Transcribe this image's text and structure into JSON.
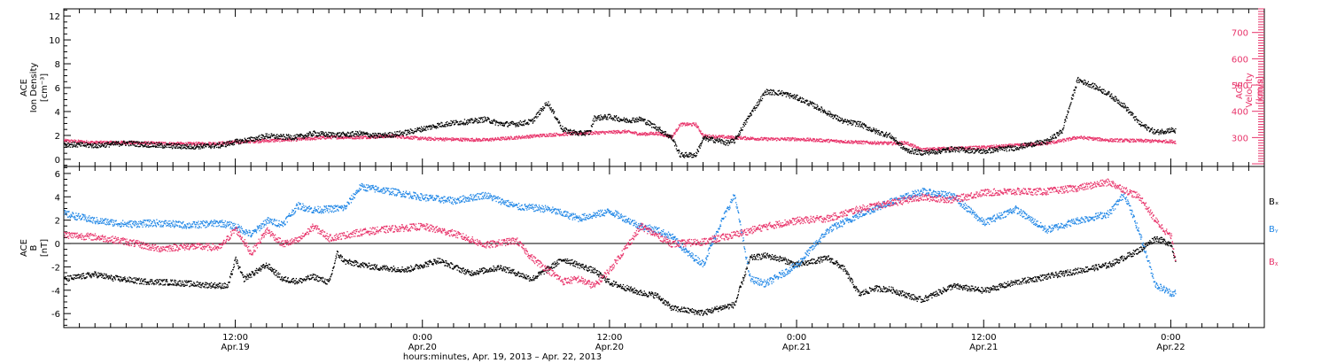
{
  "xlabel": "hours:minutes, Apr. 19, 2013 – Apr. 22, 2013",
  "x_ticks": [
    {
      "hours": 0,
      "time": "12:00",
      "date": "Apr.19"
    },
    {
      "hours": 12,
      "time": "0:00",
      "date": "Apr.20"
    },
    {
      "hours": 24,
      "time": "12:00",
      "date": "Apr.20"
    },
    {
      "hours": 36,
      "time": "0:00",
      "date": "Apr.21"
    },
    {
      "hours": 48,
      "time": "12:00",
      "date": "Apr.21"
    },
    {
      "hours": 60,
      "time": "0:00",
      "date": "Apr.22"
    }
  ],
  "x_range_hours": [
    -11,
    66
  ],
  "colors": {
    "black": "#000000",
    "pink": "#e8336a",
    "blue": "#1f86e6"
  },
  "chart_data": [
    {
      "type": "scatter",
      "panel": "top",
      "ylabel_left": [
        "ACE",
        "Ion Density",
        "[cm⁻³]"
      ],
      "ylabel_right": [
        "ACE",
        "Velocity",
        "[km/s]"
      ],
      "ylim_left": [
        -0.6,
        12.6
      ],
      "yticks_left": [
        0,
        2,
        4,
        6,
        8,
        10,
        12
      ],
      "ylim_right": [
        190,
        790
      ],
      "yticks_right": [
        300,
        400,
        500,
        600,
        700
      ],
      "series": [
        {
          "axis": "left",
          "color": "#000000",
          "x": [
            -11,
            -9,
            -7,
            -5,
            -3,
            -1,
            0,
            1,
            2,
            3,
            4,
            5,
            6,
            7,
            8,
            9,
            10,
            11,
            12,
            13,
            14,
            15,
            16,
            17,
            18,
            19,
            20,
            21,
            22,
            22.7,
            23,
            24,
            25,
            26,
            27,
            28,
            28.5,
            29.5,
            30,
            31,
            31.5,
            32,
            33,
            34,
            35,
            36,
            37,
            38,
            39,
            40,
            41,
            42,
            43,
            44,
            45,
            46,
            47,
            48,
            49,
            50,
            51,
            52,
            53,
            54,
            55,
            56,
            57,
            58,
            59,
            60,
            60.3
          ],
          "y": [
            1.3,
            1.2,
            1.4,
            1.2,
            1.1,
            1.2,
            1.5,
            1.7,
            2.0,
            1.9,
            1.9,
            2.2,
            2.1,
            2.1,
            2.2,
            2.0,
            2.1,
            2.3,
            2.6,
            2.9,
            3.1,
            3.2,
            3.4,
            3.0,
            3.0,
            3.2,
            4.8,
            2.5,
            2.2,
            2.3,
            3.5,
            3.6,
            3.3,
            3.4,
            2.7,
            1.8,
            0.4,
            0.4,
            1.8,
            1.6,
            1.4,
            1.6,
            3.8,
            5.7,
            5.6,
            5.2,
            4.6,
            3.9,
            3.2,
            3.0,
            2.4,
            2.0,
            0.8,
            0.6,
            0.7,
            0.9,
            0.8,
            0.7,
            0.9,
            1.0,
            1.3,
            1.5,
            2.4,
            6.7,
            6.2,
            5.5,
            4.5,
            3.0,
            2.3,
            2.5,
            2.4
          ]
        },
        {
          "axis": "right",
          "color": "#e8336a",
          "x": [
            -11,
            -9,
            -7,
            -5,
            -3,
            -1,
            0,
            2,
            4,
            6,
            8,
            10,
            12,
            14,
            16,
            18,
            20,
            22,
            23,
            24,
            25,
            26,
            27,
            28,
            28.5,
            29.5,
            30,
            32,
            34,
            36,
            38,
            40,
            42,
            43,
            44,
            45,
            46,
            48,
            50,
            52,
            53,
            54,
            56,
            58,
            60,
            60.3
          ],
          "y": [
            290,
            283,
            283,
            280,
            278,
            280,
            285,
            290,
            295,
            303,
            303,
            308,
            298,
            295,
            293,
            302,
            312,
            318,
            320,
            322,
            325,
            315,
            318,
            305,
            352,
            352,
            308,
            302,
            296,
            296,
            290,
            284,
            280,
            282,
            255,
            260,
            260,
            265,
            272,
            280,
            290,
            303,
            292,
            290,
            287,
            285
          ]
        }
      ]
    },
    {
      "type": "scatter",
      "panel": "bottom",
      "ylabel_left": [
        "ACE",
        "B",
        "[nT]"
      ],
      "ylim_left": [
        -7.2,
        6.6
      ],
      "yticks_left": [
        -6,
        -4,
        -2,
        0,
        2,
        4,
        6
      ],
      "zero_line": true,
      "legend": [
        "Bₓ",
        "Bᵧ",
        "Bᵪ"
      ],
      "series": [
        {
          "name": "Bx",
          "color": "#000000",
          "x": [
            -11,
            -9,
            -8,
            -6,
            -4,
            -2,
            -0.5,
            0,
            0.5,
            2,
            3,
            4,
            5,
            6,
            6.5,
            7,
            9,
            11,
            13,
            15,
            17,
            19,
            21,
            23,
            24,
            26,
            27,
            28,
            30,
            31,
            32,
            33,
            34,
            35,
            36,
            37,
            38,
            39,
            40,
            41,
            42,
            44,
            46,
            48,
            50,
            52,
            54,
            56,
            58,
            59,
            60,
            60.3
          ],
          "y": [
            -3.0,
            -2.6,
            -2.9,
            -3.2,
            -3.3,
            -3.5,
            -3.6,
            -1.3,
            -3.0,
            -1.8,
            -3.0,
            -3.2,
            -2.8,
            -3.3,
            -0.8,
            -1.5,
            -2.0,
            -2.2,
            -1.4,
            -2.5,
            -2.0,
            -3.0,
            -1.3,
            -2.3,
            -3.3,
            -4.2,
            -4.4,
            -5.5,
            -5.9,
            -5.5,
            -5.2,
            -1.2,
            -1.0,
            -1.3,
            -1.8,
            -1.5,
            -1.2,
            -2.1,
            -4.3,
            -3.8,
            -3.9,
            -4.8,
            -3.6,
            -4.0,
            -3.3,
            -2.8,
            -2.3,
            -1.8,
            -0.5,
            0.5,
            0.0,
            -1.6
          ]
        },
        {
          "name": "By",
          "color": "#1f86e6",
          "x": [
            -11,
            -9,
            -7,
            -5,
            -3,
            -1,
            0,
            1,
            2,
            3,
            4,
            5,
            6,
            7,
            8,
            9,
            10,
            12,
            14,
            16,
            18,
            20,
            22,
            24,
            26,
            27,
            28,
            29,
            30,
            31,
            32,
            33,
            34,
            36,
            38,
            40,
            42,
            44,
            46,
            48,
            50,
            52,
            54,
            56,
            57,
            58,
            59,
            60,
            60.3
          ],
          "y": [
            2.6,
            2.0,
            1.7,
            1.8,
            1.6,
            1.8,
            1.5,
            0.8,
            2.0,
            1.7,
            3.3,
            2.9,
            3.0,
            3.1,
            4.9,
            4.7,
            4.5,
            4.0,
            3.7,
            4.2,
            3.2,
            3.0,
            2.2,
            2.8,
            1.5,
            1.2,
            0.6,
            -0.8,
            -1.7,
            1.5,
            4.2,
            -3.0,
            -3.4,
            -1.8,
            1.2,
            2.5,
            3.6,
            4.5,
            4.1,
            1.8,
            3.0,
            1.2,
            2.0,
            2.6,
            4.3,
            0.8,
            -3.5,
            -4.2,
            -4.2
          ]
        },
        {
          "name": "Bz",
          "color": "#e8336a",
          "x": [
            -11,
            -9,
            -7,
            -5,
            -3,
            -1,
            0,
            1,
            2,
            3,
            4,
            5,
            6,
            8,
            10,
            12,
            14,
            16,
            18,
            19,
            20,
            21,
            22,
            23,
            24,
            26,
            28,
            30,
            32,
            34,
            36,
            38,
            40,
            42,
            44,
            46,
            48,
            50,
            52,
            54,
            56,
            58,
            59,
            60,
            60.3
          ],
          "y": [
            0.8,
            0.6,
            0.2,
            -0.4,
            -0.2,
            -0.3,
            1.3,
            -0.8,
            1.2,
            0.0,
            0.3,
            1.5,
            0.5,
            1.0,
            1.3,
            1.5,
            0.9,
            -0.1,
            0.3,
            -1.2,
            -2.2,
            -3.2,
            -3.0,
            -3.6,
            -2.2,
            1.5,
            0.0,
            0.2,
            0.8,
            1.5,
            2.0,
            2.2,
            3.0,
            3.5,
            4.0,
            3.8,
            4.4,
            4.5,
            4.5,
            4.8,
            5.3,
            4.0,
            2.0,
            0.6,
            -1.5
          ]
        }
      ]
    }
  ]
}
